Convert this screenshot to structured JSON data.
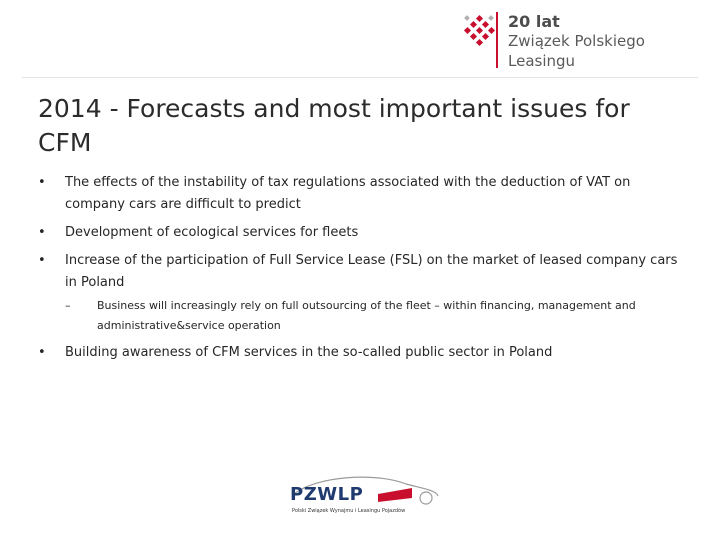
{
  "header": {
    "logo_line1": "20 lat",
    "logo_line2": "Związek Polskiego",
    "logo_line3": "Leasingu"
  },
  "slide": {
    "title": "2014 - Forecasts and most important issues for CFM",
    "bullets": [
      {
        "text": "The effects of the instability of tax regulations associated with the deduction of VAT on company cars  are difficult to predict"
      },
      {
        "text": "Development of ecological services for fleets"
      },
      {
        "text": "Increase of the participation of Full Service Lease (FSL) on the market of leased company cars in Poland",
        "sub": [
          "Business will increasingly rely on full outsourcing of the fleet – within financing, management and administrative&service operation"
        ]
      },
      {
        "text": "Building awareness of CFM services in the so-called public sector in Poland"
      }
    ]
  },
  "footer": {
    "logo_text": "PZWLP",
    "logo_subtext": "Polski Związek Wynajmu i Leasingu Pojazdów"
  },
  "colors": {
    "accent_red": "#c8102e",
    "footer_blue": "#1f3a6e"
  }
}
